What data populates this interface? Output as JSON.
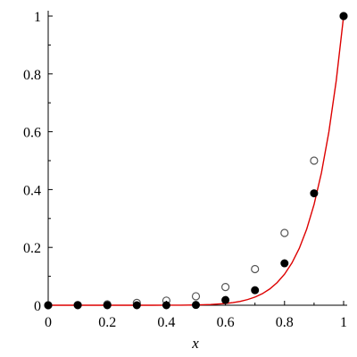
{
  "chart_data": {
    "type": "scatter",
    "title": "",
    "xlabel": "x",
    "ylabel": "",
    "xlim": [
      0,
      1
    ],
    "ylim": [
      0,
      1
    ],
    "grid": false,
    "legend": "none",
    "x_ticks": [
      0,
      0.2,
      0.4,
      0.6,
      0.8,
      1
    ],
    "x_tick_labels": [
      "0",
      "0.2",
      "0.4",
      "0.6",
      "0.8",
      "1"
    ],
    "y_ticks": [
      0,
      0.2,
      0.4,
      0.6,
      0.8,
      1
    ],
    "y_tick_labels": [
      "0",
      "0.2",
      "0.4",
      "0.6",
      "0.8",
      "1"
    ],
    "series": [
      {
        "kind": "line",
        "color": "#dd0000",
        "function": "x^10",
        "x": [
          0,
          0.05,
          0.1,
          0.15,
          0.2,
          0.25,
          0.3,
          0.35,
          0.4,
          0.45,
          0.5,
          0.55,
          0.6,
          0.625,
          0.65,
          0.675,
          0.7,
          0.725,
          0.75,
          0.775,
          0.8,
          0.825,
          0.85,
          0.875,
          0.9,
          0.925,
          0.95,
          0.975,
          1
        ],
        "y": [
          0,
          0,
          0,
          0,
          0,
          0,
          1e-05,
          3e-05,
          0.0001,
          0.0003,
          0.001,
          0.0025,
          0.006,
          0.0091,
          0.0135,
          0.0197,
          0.0282,
          0.0399,
          0.0563,
          0.0783,
          0.1074,
          0.1461,
          0.1969,
          0.2631,
          0.3487,
          0.4584,
          0.5987,
          0.7763,
          1
        ]
      },
      {
        "kind": "points",
        "marker": "open-circle",
        "color": "#555555",
        "x": [
          0,
          0.1,
          0.2,
          0.3,
          0.4,
          0.5,
          0.6,
          0.7,
          0.8,
          0.9,
          1
        ],
        "y": [
          0,
          0.001,
          0.003,
          0.008,
          0.016,
          0.031,
          0.063,
          0.125,
          0.25,
          0.5,
          1
        ]
      },
      {
        "kind": "points",
        "marker": "filled-circle",
        "color": "#000000",
        "x": [
          0,
          0.1,
          0.2,
          0.3,
          0.4,
          0.5,
          0.6,
          0.7,
          0.8,
          0.9,
          1
        ],
        "y": [
          0,
          0,
          0,
          0,
          0,
          0.001,
          0.018,
          0.052,
          0.145,
          0.387,
          1
        ]
      }
    ]
  }
}
